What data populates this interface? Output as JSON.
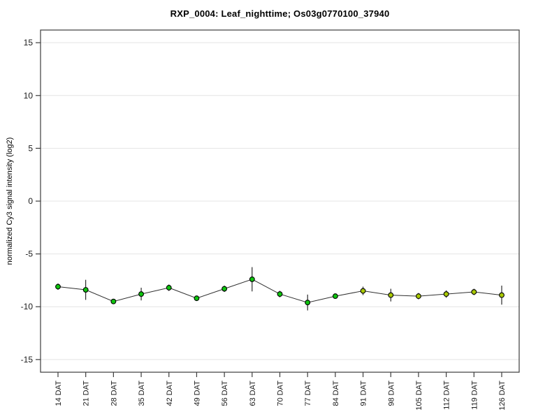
{
  "chart_data": {
    "type": "line",
    "title": "RXP_0004: Leaf_nighttime; Os03g0770100_37940",
    "ylabel": "normalized Cy3 signal intensity (log2)",
    "xlabel": "",
    "ylim": [
      -16.2,
      16.2
    ],
    "yticks": [
      15,
      10,
      5,
      0,
      -5,
      -10,
      -15
    ],
    "grid": true,
    "legend": "none",
    "categories": [
      "14 DAT",
      "21 DAT",
      "28 DAT",
      "35 DAT",
      "42 DAT",
      "49 DAT",
      "56 DAT",
      "63 DAT",
      "70 DAT",
      "77 DAT",
      "84 DAT",
      "91 DAT",
      "98 DAT",
      "105 DAT",
      "112 DAT",
      "119 DAT",
      "126 DAT"
    ],
    "series": [
      {
        "name": "normalized Cy3 signal intensity (log2)",
        "values": [
          -8.1,
          -8.4,
          -9.5,
          -8.8,
          -8.2,
          -9.2,
          -8.3,
          -7.4,
          -8.8,
          -9.6,
          -9.0,
          -8.5,
          -8.9,
          -9.0,
          -8.8,
          -8.6,
          -8.9
        ],
        "errors": [
          0.3,
          0.95,
          0.15,
          0.6,
          0.3,
          0.15,
          0.3,
          1.15,
          0.3,
          0.75,
          0.2,
          0.4,
          0.6,
          0.3,
          0.35,
          0.3,
          0.9
        ],
        "errors_are": "plus-minus",
        "point_colors": [
          "#0ec40e",
          "#0ec40e",
          "#0ec40e",
          "#0ec40e",
          "#0ec40e",
          "#0ec40e",
          "#0ec40e",
          "#0ec40e",
          "#0ec40e",
          "#0ec40e",
          "#0ec40e",
          "#a8c800",
          "#a8c800",
          "#a8c800",
          "#a8c800",
          "#a8c800",
          "#a8c800"
        ]
      }
    ],
    "marker": "circle-black-outline",
    "colors": {
      "background": "#ffffff",
      "grid": "#e4e4e4",
      "frame": "#3c3c3c",
      "line": "#303030",
      "error_bar": "#000000",
      "marker_stroke": "#000000",
      "text": "#1a1a1a"
    }
  }
}
